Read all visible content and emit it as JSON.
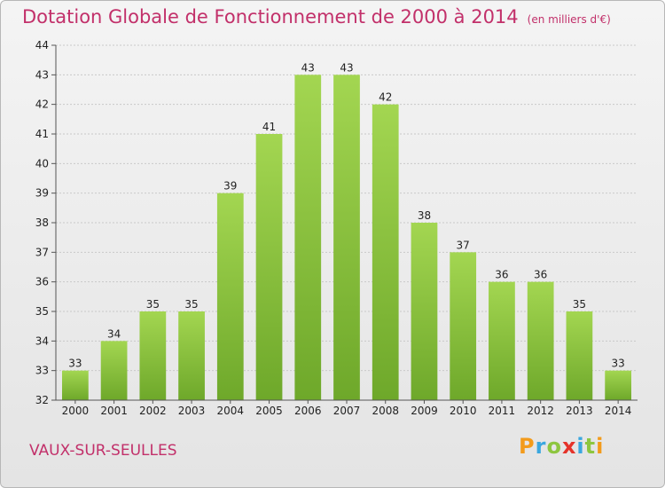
{
  "title": "Dotation Globale de Fonctionnement de 2000 à 2014",
  "unit": "(en milliers d'€)",
  "place": "VAUX-SUR-SEULLES",
  "logo": {
    "letters": [
      "P",
      "r",
      "o",
      "x",
      "i",
      "t",
      "i"
    ],
    "colors": [
      "#f39b1b",
      "#3aa7df",
      "#8dc63f",
      "#e5332a",
      "#3aa7df",
      "#8dc63f",
      "#f39b1b"
    ]
  },
  "colors": {
    "bar_light": "#a3d651",
    "bar_dark": "#6ea82a",
    "grid": "#c9c9c9",
    "axis": "#555555",
    "text": "#222222",
    "accent": "#c2306a"
  },
  "chart_data": {
    "type": "bar",
    "title": "Dotation Globale de Fonctionnement de 2000 à 2014",
    "categories": [
      "2000",
      "2001",
      "2002",
      "2003",
      "2004",
      "2005",
      "2006",
      "2007",
      "2008",
      "2009",
      "2010",
      "2011",
      "2012",
      "2013",
      "2014"
    ],
    "values": [
      33,
      34,
      35,
      35,
      39,
      41,
      43,
      43,
      42,
      38,
      37,
      36,
      36,
      35,
      33
    ],
    "ylim": [
      32,
      44
    ],
    "yticks": [
      32,
      33,
      34,
      35,
      36,
      37,
      38,
      39,
      40,
      41,
      42,
      43,
      44
    ],
    "grid": true
  }
}
